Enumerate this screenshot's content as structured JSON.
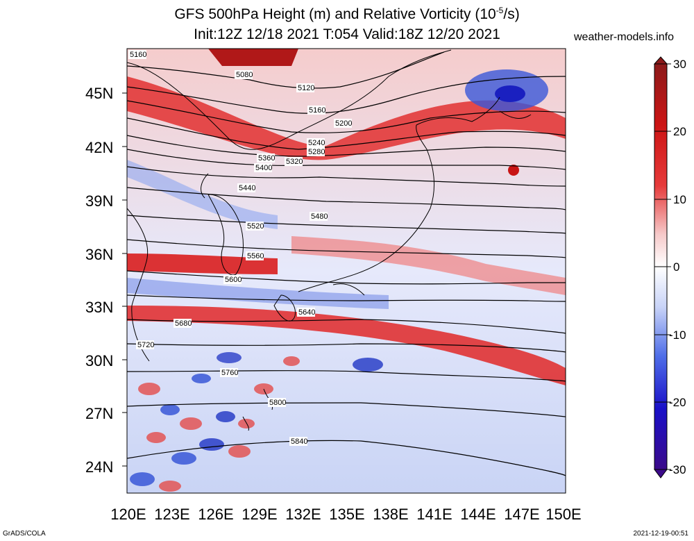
{
  "title": {
    "line1_prefix": "GFS 500hPa Height (m) and Relative Vorticity (10",
    "line1_sup": "-5",
    "line1_suffix": "/s)",
    "line2": "Init:12Z 12/18 2021 T:054 Valid:18Z 12/20 2021"
  },
  "site": "weather-models.info",
  "footer_left": "GrADS/COLA",
  "footer_right": "2021-12-19-00:51",
  "map": {
    "lat_ticks": [
      "45N",
      "42N",
      "39N",
      "36N",
      "33N",
      "30N",
      "27N",
      "24N"
    ],
    "lon_ticks": [
      "120E",
      "123E",
      "126E",
      "129E",
      "132E",
      "135E",
      "138E",
      "141E",
      "144E",
      "147E",
      "150E"
    ],
    "contour_labels": [
      {
        "text": "5160",
        "row": 0
      },
      {
        "text": "5080",
        "row": 0
      },
      {
        "text": "5120",
        "row": 1
      },
      {
        "text": "5160",
        "row": 1
      },
      {
        "text": "5200",
        "row": 2
      },
      {
        "text": "5240",
        "row": 3
      },
      {
        "text": "5280",
        "row": 3
      },
      {
        "text": "5320",
        "row": 4
      },
      {
        "text": "5360",
        "row": 4
      },
      {
        "text": "5400",
        "row": 5
      },
      {
        "text": "5440",
        "row": 6
      },
      {
        "text": "5480",
        "row": 7
      },
      {
        "text": "5520",
        "row": 8
      },
      {
        "text": "5560",
        "row": 9
      },
      {
        "text": "5600",
        "row": 10
      },
      {
        "text": "5640",
        "row": 11
      },
      {
        "text": "5680",
        "row": 12
      },
      {
        "text": "5720",
        "row": 13
      },
      {
        "text": "5760",
        "row": 14
      },
      {
        "text": "5800",
        "row": 15
      },
      {
        "text": "5840",
        "row": 16
      }
    ]
  },
  "colorbar": {
    "ticks": [
      "30",
      "20",
      "10",
      "0",
      "-10",
      "-20",
      "-30"
    ],
    "colors": [
      "#3b0a8a",
      "#1a10c8",
      "#2f5ae0",
      "#7f9df0",
      "#c8d3f7",
      "#ffffff",
      "#f6c9c9",
      "#f08080",
      "#e63a3a",
      "#cc1414",
      "#8c1a1a"
    ]
  }
}
